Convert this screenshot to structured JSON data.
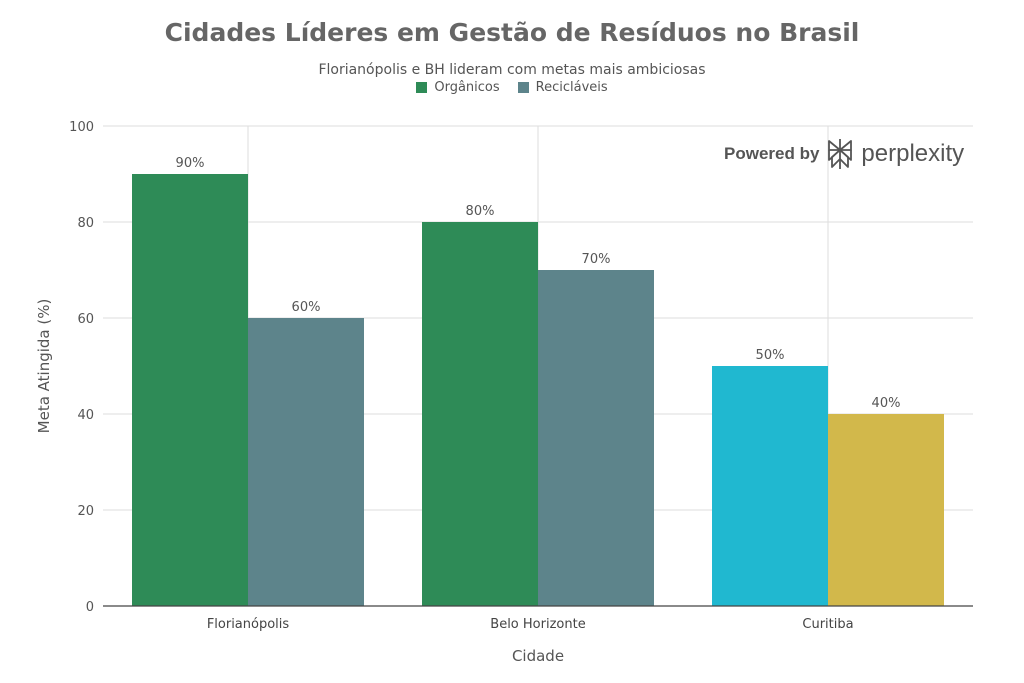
{
  "chart_data": {
    "type": "bar",
    "title": "Cidades Líderes em Gestão de Resíduos no Brasil",
    "subtitle": "Florianópolis e BH lideram com metas mais ambiciosas",
    "xlabel": "Cidade",
    "ylabel": "Meta Atingida (%)",
    "ylim": [
      0,
      100
    ],
    "yticks": [
      0,
      20,
      40,
      60,
      80,
      100
    ],
    "grid": true,
    "legend_position": "top-center",
    "categories": [
      "Florianópolis",
      "Belo Horizonte",
      "Curitiba"
    ],
    "series": [
      {
        "name": "Orgânicos",
        "values": [
          90,
          80,
          50
        ],
        "labels": [
          "90%",
          "80%",
          "50%"
        ],
        "color": "#2e8b57",
        "bar_colors": [
          "#2e8b57",
          "#2e8b57",
          "#20b8d0"
        ]
      },
      {
        "name": "Recicláveis",
        "values": [
          60,
          70,
          40
        ],
        "labels": [
          "60%",
          "70%",
          "40%"
        ],
        "color": "#5d848b",
        "bar_colors": [
          "#5d848b",
          "#5d848b",
          "#d2b84b"
        ]
      }
    ]
  },
  "branding": {
    "powered_by": "Powered by",
    "name": "perplexity",
    "icon": "perplexity-logo-icon"
  }
}
